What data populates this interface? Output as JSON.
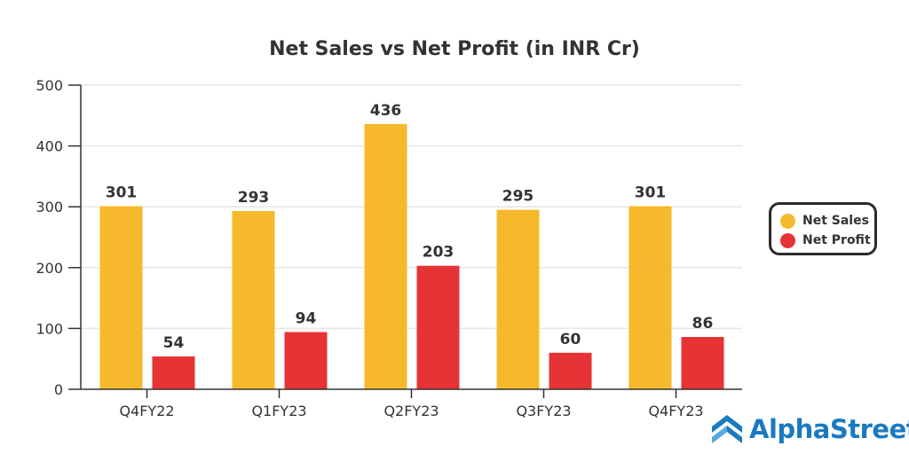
{
  "chart_data": {
    "type": "bar",
    "title": "Net Sales vs Net Profit (in INR Cr)",
    "categories": [
      "Q4FY22",
      "Q1FY23",
      "Q2FY23",
      "Q3FY23",
      "Q4FY23"
    ],
    "series": [
      {
        "name": "Net Sales",
        "color": "#f6b92b",
        "values": [
          301,
          293,
          436,
          295,
          301
        ]
      },
      {
        "name": "Net Profit",
        "color": "#e63335",
        "values": [
          54,
          94,
          203,
          60,
          86
        ]
      }
    ],
    "ylim": [
      0,
      500
    ],
    "yticks": [
      "0",
      "100",
      "200",
      "300",
      "400",
      "500"
    ],
    "grid": true,
    "legend_position": "right",
    "xlabel": "",
    "ylabel": ""
  },
  "legend": {
    "items": [
      "Net Sales",
      "Net Profit"
    ]
  },
  "logo": {
    "text": "AlphaStreet"
  }
}
